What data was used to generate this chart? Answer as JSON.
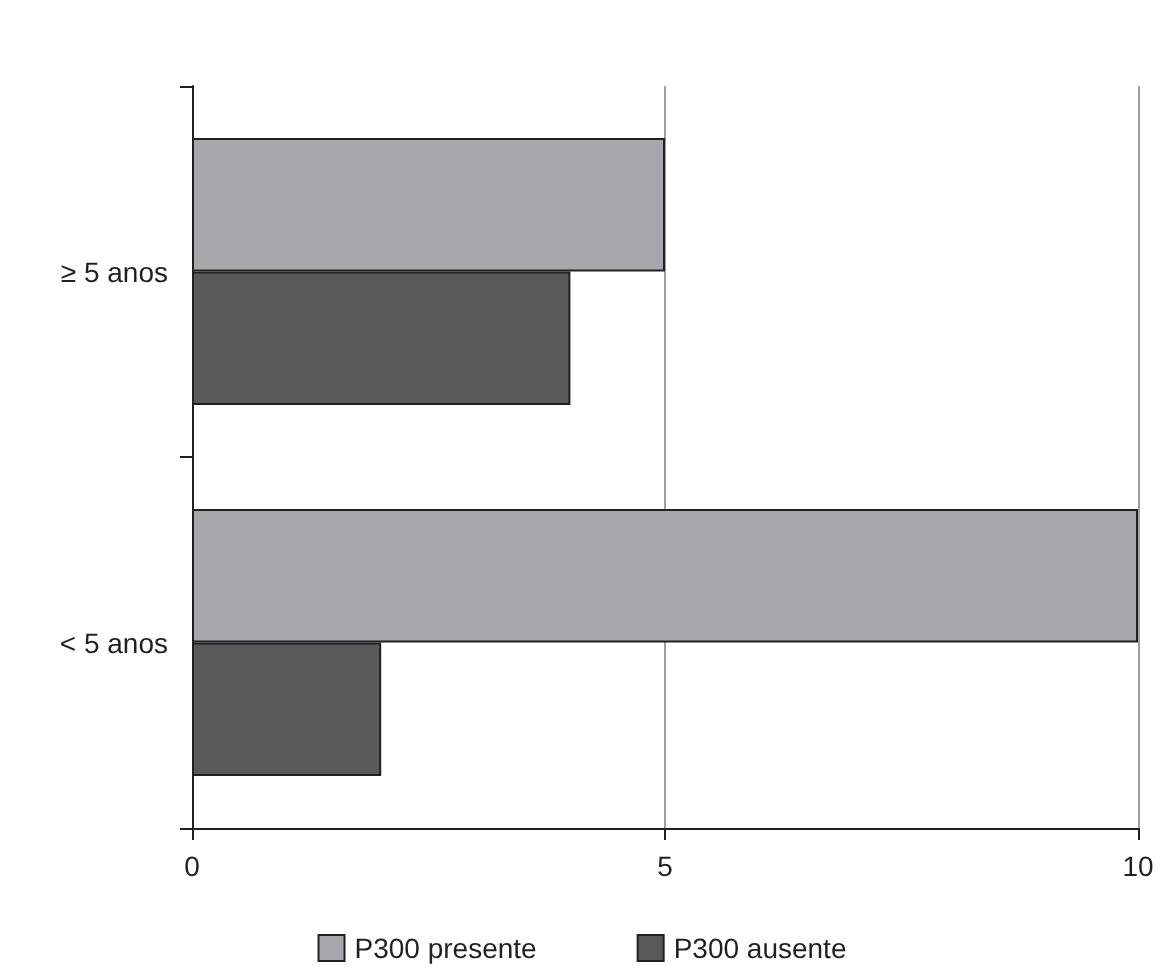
{
  "chart_data": {
    "type": "bar",
    "orientation": "horizontal",
    "categories": [
      "≥ 5 anos",
      "< 5 anos"
    ],
    "series": [
      {
        "name": "P300 presente",
        "color": "#a7a8ab",
        "values": [
          5,
          10
        ]
      },
      {
        "name": "P300 ausente",
        "color": "#58595b",
        "values": [
          4,
          2
        ]
      }
    ],
    "xlim": [
      0,
      10
    ],
    "xticks": [
      0,
      5,
      10
    ],
    "grid": "x",
    "legend": "bottom"
  }
}
